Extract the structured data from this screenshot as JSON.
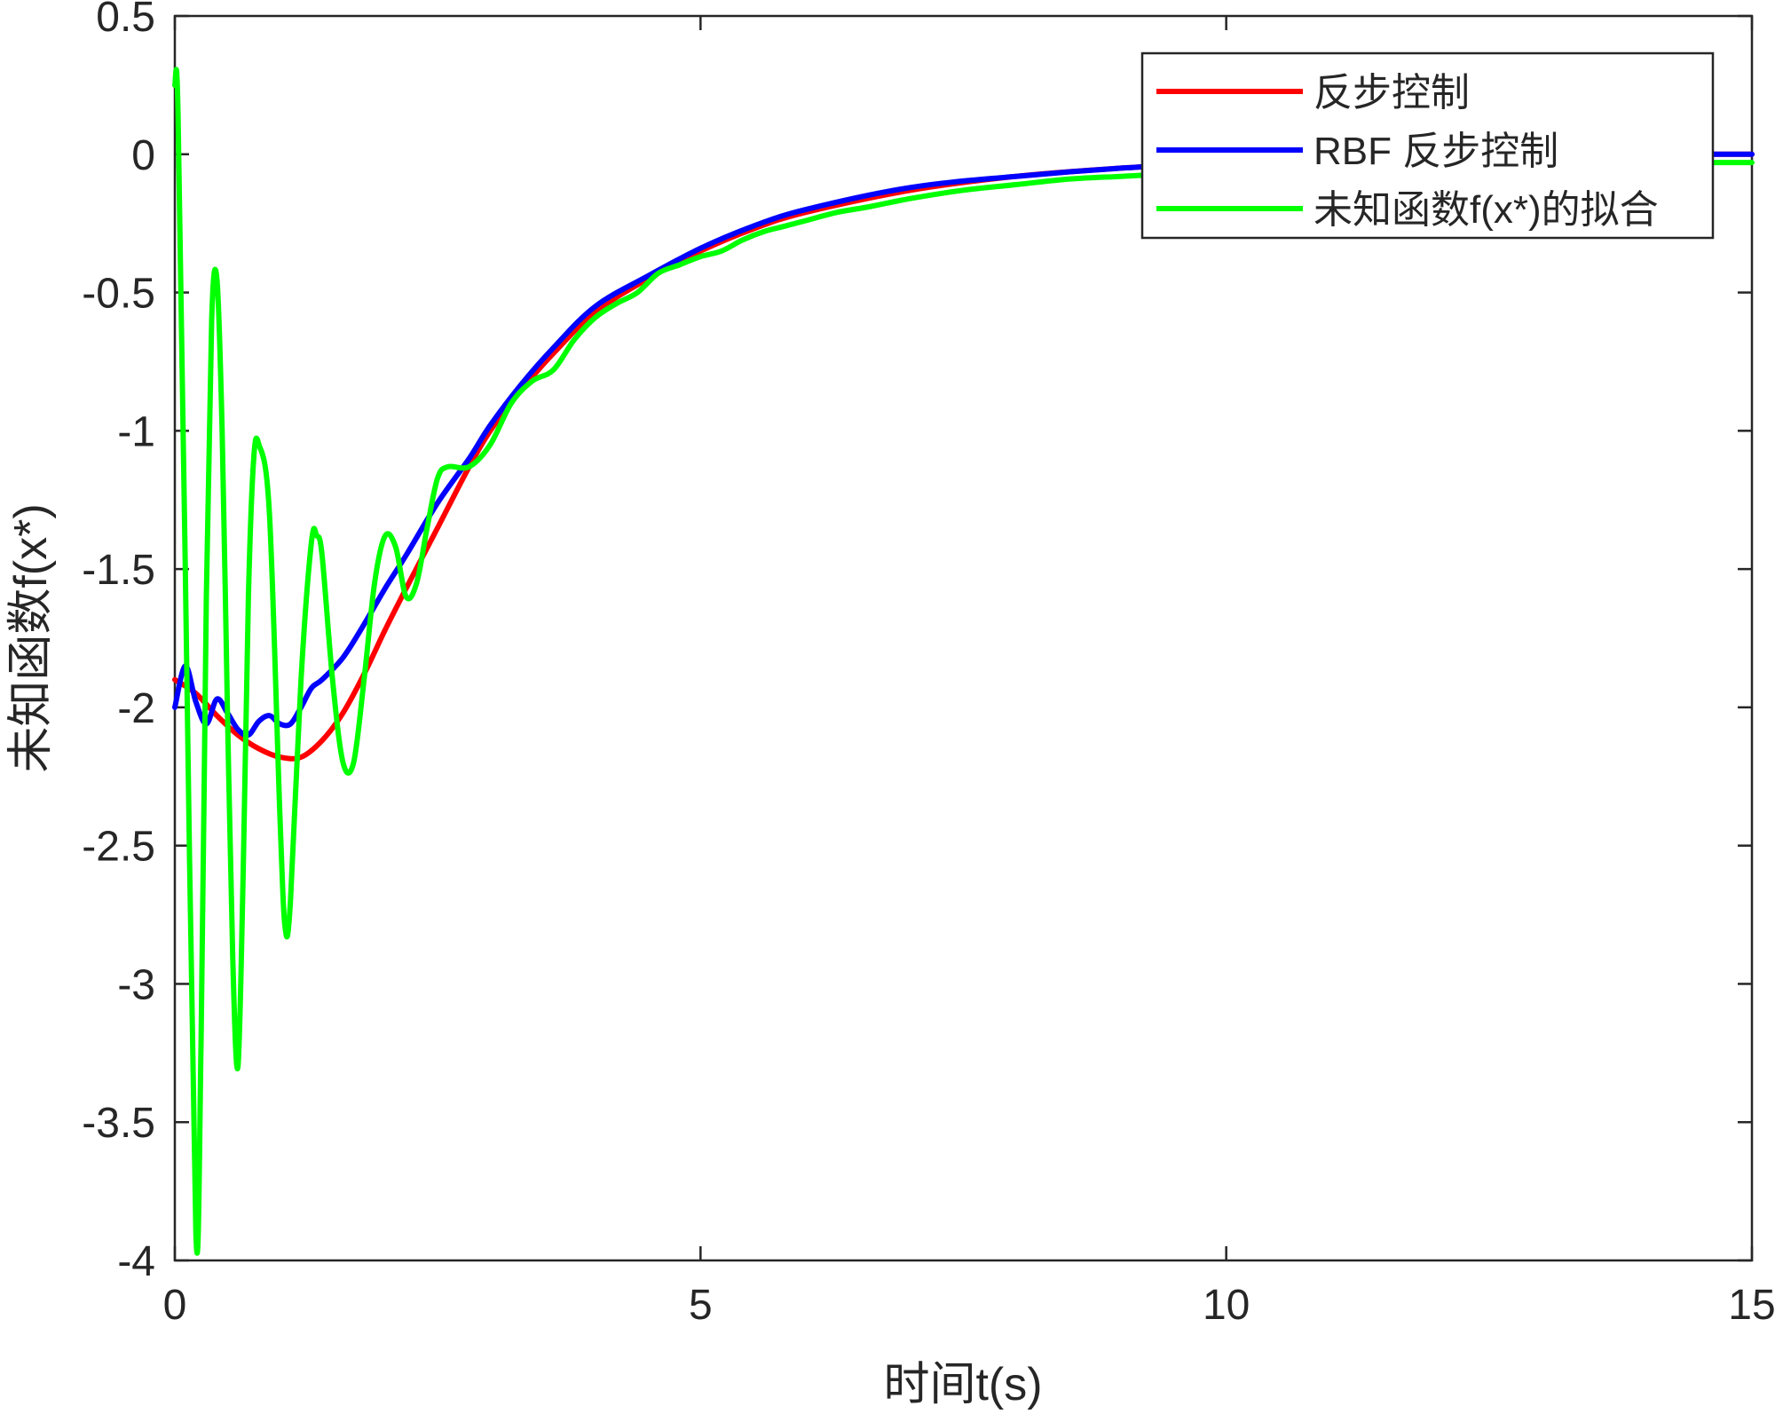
{
  "chart_data": {
    "type": "line",
    "title": "",
    "xlabel": "时间t(s)",
    "ylabel": "未知函数f(x*)",
    "xlim": [
      0,
      15
    ],
    "ylim": [
      -4,
      0.5
    ],
    "xticks": [
      0,
      5,
      10,
      15
    ],
    "xtick_labels": [
      "0",
      "5",
      "10",
      "15"
    ],
    "yticks": [
      0.5,
      0,
      -0.5,
      -1,
      -1.5,
      -2,
      -2.5,
      -3,
      -3.5,
      -4
    ],
    "ytick_labels": [
      "0.5",
      "0",
      "-0.5",
      "-1",
      "-1.5",
      "-2",
      "-2.5",
      "-3",
      "-3.5",
      "-4"
    ],
    "grid": false,
    "legend_position": "top-right",
    "series": [
      {
        "name": "反步控制",
        "color": "#ff0000",
        "x": [
          0,
          0.2,
          0.4,
          0.6,
          0.8,
          1.0,
          1.2,
          1.4,
          1.6,
          1.8,
          2.0,
          2.2,
          2.5,
          2.8,
          3.0,
          3.3,
          3.6,
          4.0,
          4.5,
          5.0,
          5.5,
          6.0,
          7.0,
          8.0,
          9.0,
          10.0,
          11.0,
          12.0,
          13.0,
          14.0,
          15.0
        ],
        "y": [
          -1.9,
          -1.95,
          -2.03,
          -2.1,
          -2.15,
          -2.18,
          -2.18,
          -2.12,
          -2.02,
          -1.88,
          -1.72,
          -1.57,
          -1.35,
          -1.13,
          -1.0,
          -0.85,
          -0.72,
          -0.57,
          -0.45,
          -0.35,
          -0.27,
          -0.21,
          -0.13,
          -0.08,
          -0.05,
          -0.03,
          -0.01,
          0.0,
          0.0,
          0.0,
          0.0
        ]
      },
      {
        "name": "RBF 反步控制",
        "color": "#0000ff",
        "x": [
          0,
          0.1,
          0.2,
          0.3,
          0.4,
          0.5,
          0.6,
          0.7,
          0.8,
          0.9,
          1.0,
          1.1,
          1.2,
          1.3,
          1.4,
          1.6,
          1.8,
          2.0,
          2.2,
          2.5,
          2.8,
          3.0,
          3.3,
          3.6,
          4.0,
          4.5,
          5.0,
          5.5,
          6.0,
          7.0,
          8.0,
          9.0,
          10.0,
          11.0,
          12.0,
          13.0,
          14.0,
          15.0
        ],
        "y": [
          -2.0,
          -1.85,
          -1.98,
          -2.06,
          -1.97,
          -2.02,
          -2.08,
          -2.1,
          -2.05,
          -2.03,
          -2.06,
          -2.06,
          -2.0,
          -1.93,
          -1.9,
          -1.82,
          -1.7,
          -1.57,
          -1.45,
          -1.26,
          -1.1,
          -0.98,
          -0.83,
          -0.7,
          -0.55,
          -0.44,
          -0.34,
          -0.26,
          -0.2,
          -0.12,
          -0.08,
          -0.05,
          -0.03,
          -0.01,
          0.0,
          0.0,
          0.0,
          0.0
        ]
      },
      {
        "name": "未知函数f(x*)的拟合",
        "color": "#00ff00",
        "x": [
          0,
          0.03,
          0.1,
          0.2,
          0.25,
          0.3,
          0.35,
          0.4,
          0.45,
          0.5,
          0.55,
          0.6,
          0.65,
          0.7,
          0.75,
          0.8,
          0.9,
          1.0,
          1.05,
          1.1,
          1.2,
          1.3,
          1.35,
          1.4,
          1.5,
          1.6,
          1.7,
          1.8,
          1.9,
          2.0,
          2.1,
          2.2,
          2.3,
          2.4,
          2.5,
          2.6,
          2.8,
          3.0,
          3.2,
          3.4,
          3.6,
          3.8,
          4.0,
          4.2,
          4.4,
          4.6,
          4.8,
          5.0,
          5.2,
          5.4,
          5.6,
          5.8,
          6.0,
          6.3,
          6.6,
          7.0,
          7.5,
          8.0,
          8.5,
          9.0,
          9.5,
          10.0,
          11.0,
          12.0,
          13.0,
          14.0,
          15.0
        ],
        "y": [
          0.25,
          0.15,
          -1.5,
          -3.9,
          -3.2,
          -1.6,
          -0.6,
          -0.45,
          -1.0,
          -2.0,
          -2.9,
          -3.3,
          -2.6,
          -1.6,
          -1.1,
          -1.05,
          -1.3,
          -2.4,
          -2.8,
          -2.7,
          -1.9,
          -1.4,
          -1.38,
          -1.45,
          -1.9,
          -2.2,
          -2.2,
          -1.9,
          -1.55,
          -1.38,
          -1.42,
          -1.6,
          -1.55,
          -1.35,
          -1.17,
          -1.13,
          -1.13,
          -1.05,
          -0.9,
          -0.82,
          -0.78,
          -0.67,
          -0.59,
          -0.54,
          -0.5,
          -0.43,
          -0.4,
          -0.37,
          -0.35,
          -0.31,
          -0.28,
          -0.26,
          -0.24,
          -0.21,
          -0.19,
          -0.16,
          -0.13,
          -0.11,
          -0.09,
          -0.08,
          -0.07,
          -0.06,
          -0.05,
          -0.04,
          -0.03,
          -0.03,
          -0.03
        ]
      }
    ]
  }
}
